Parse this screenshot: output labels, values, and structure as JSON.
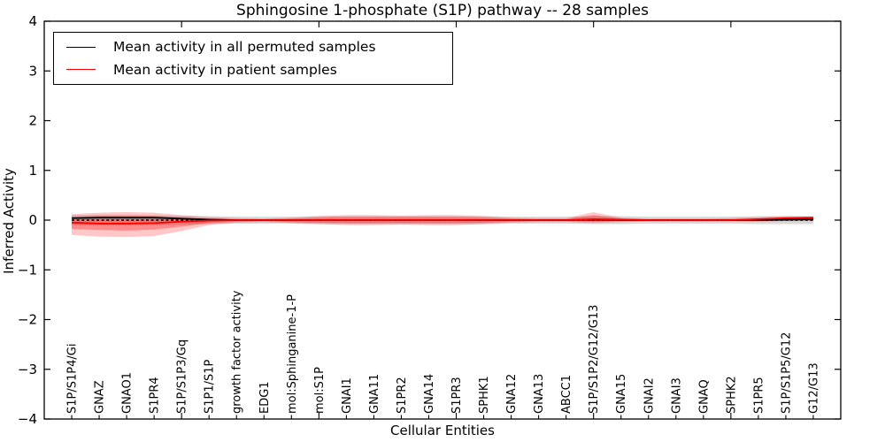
{
  "chart_data": {
    "type": "line",
    "title": "Sphingosine 1-phosphate (S1P) pathway -- 28 samples",
    "xlabel": "Cellular Entities",
    "ylabel": "Inferred Activity",
    "ylim": [
      -4,
      4
    ],
    "y_ticks": [
      4,
      3,
      2,
      1,
      0,
      -1,
      -2,
      -3,
      -4
    ],
    "y_tick_labels": [
      "4",
      "3",
      "2",
      "1",
      "0",
      "−1",
      "−2",
      "−3",
      "−4"
    ],
    "grid": false,
    "legend_position": "upper left",
    "categories": [
      "S1P/S1P4/Gi",
      "GNAZ",
      "GNAO1",
      "S1PR4",
      "S1P/S1P3/Gq",
      "S1P1/S1P",
      "growth factor activity",
      "EDG1",
      "mol:Sphinganine-1-P",
      "mol:S1P",
      "GNAI1",
      "GNA11",
      "S1PR2",
      "GNA14",
      "S1PR3",
      "SPHK1",
      "GNA12",
      "GNA13",
      "ABCC1",
      "S1P/S1P2/G12/G13",
      "GNA15",
      "GNAI2",
      "GNAI3",
      "GNAQ",
      "SPHK2",
      "S1PR5",
      "S1P/S1P5/G12",
      "G12/G13"
    ],
    "zero_line": {
      "style": "dashed",
      "color": "#000000",
      "y": 0
    },
    "series": [
      {
        "name": "Mean activity in all permuted samples",
        "color": "#000000",
        "values": [
          0.04,
          0.05,
          0.05,
          0.05,
          0.03,
          0.01,
          0.0,
          0.0,
          0.0,
          0.0,
          0.0,
          0.0,
          0.0,
          0.0,
          0.0,
          0.0,
          0.0,
          0.0,
          0.0,
          0.01,
          0.0,
          0.0,
          0.0,
          0.0,
          0.0,
          0.0,
          0.01,
          0.02
        ]
      },
      {
        "name": "Mean activity in patient samples",
        "color": "#ff0000",
        "values": [
          -0.05,
          -0.07,
          -0.07,
          -0.06,
          -0.03,
          -0.01,
          0.0,
          0.0,
          0.0,
          0.0,
          0.0,
          0.0,
          0.0,
          0.0,
          0.0,
          0.0,
          0.0,
          0.0,
          0.0,
          0.02,
          0.01,
          0.0,
          0.0,
          0.0,
          0.0,
          0.02,
          0.04,
          0.05
        ]
      }
    ],
    "bands": [
      {
        "name": "permuted-samples-spread",
        "color": "#aaaaaa",
        "opacity": 0.45,
        "upper": [
          0.1,
          0.11,
          0.11,
          0.1,
          0.09,
          0.08,
          0.07,
          0.07,
          0.07,
          0.08,
          0.08,
          0.08,
          0.08,
          0.08,
          0.08,
          0.08,
          0.07,
          0.07,
          0.07,
          0.08,
          0.08,
          0.07,
          0.07,
          0.07,
          0.07,
          0.08,
          0.08,
          0.08
        ],
        "lower": [
          -0.1,
          -0.11,
          -0.11,
          -0.1,
          -0.09,
          -0.08,
          -0.07,
          -0.07,
          -0.07,
          -0.08,
          -0.08,
          -0.08,
          -0.08,
          -0.08,
          -0.08,
          -0.08,
          -0.07,
          -0.07,
          -0.07,
          -0.08,
          -0.08,
          -0.07,
          -0.07,
          -0.07,
          -0.07,
          -0.08,
          -0.08,
          -0.08
        ]
      },
      {
        "name": "patient-samples-spread-outer",
        "color": "#ff0000",
        "opacity": 0.22,
        "upper": [
          0.12,
          0.15,
          0.16,
          0.15,
          0.1,
          0.06,
          0.04,
          0.03,
          0.05,
          0.08,
          0.1,
          0.1,
          0.09,
          0.1,
          0.1,
          0.08,
          0.05,
          0.04,
          0.04,
          0.16,
          0.05,
          0.03,
          0.03,
          0.03,
          0.04,
          0.06,
          0.08,
          0.07
        ],
        "lower": [
          -0.3,
          -0.33,
          -0.34,
          -0.32,
          -0.22,
          -0.1,
          -0.05,
          -0.04,
          -0.06,
          -0.08,
          -0.1,
          -0.1,
          -0.09,
          -0.1,
          -0.1,
          -0.08,
          -0.05,
          -0.04,
          -0.04,
          -0.06,
          -0.04,
          -0.03,
          -0.03,
          -0.03,
          -0.03,
          -0.03,
          -0.02,
          -0.02
        ]
      },
      {
        "name": "patient-samples-spread-inner",
        "color": "#ff0000",
        "opacity": 0.3,
        "upper": [
          0.06,
          0.08,
          0.08,
          0.08,
          0.05,
          0.03,
          0.02,
          0.02,
          0.03,
          0.05,
          0.06,
          0.06,
          0.06,
          0.06,
          0.06,
          0.05,
          0.03,
          0.02,
          0.02,
          0.1,
          0.03,
          0.02,
          0.02,
          0.02,
          0.02,
          0.03,
          0.05,
          0.05
        ],
        "lower": [
          -0.18,
          -0.2,
          -0.21,
          -0.19,
          -0.13,
          -0.06,
          -0.03,
          -0.02,
          -0.04,
          -0.05,
          -0.06,
          -0.06,
          -0.06,
          -0.06,
          -0.06,
          -0.05,
          -0.03,
          -0.02,
          -0.02,
          -0.03,
          -0.02,
          -0.02,
          -0.02,
          -0.02,
          -0.02,
          -0.02,
          -0.01,
          -0.01
        ]
      }
    ]
  }
}
